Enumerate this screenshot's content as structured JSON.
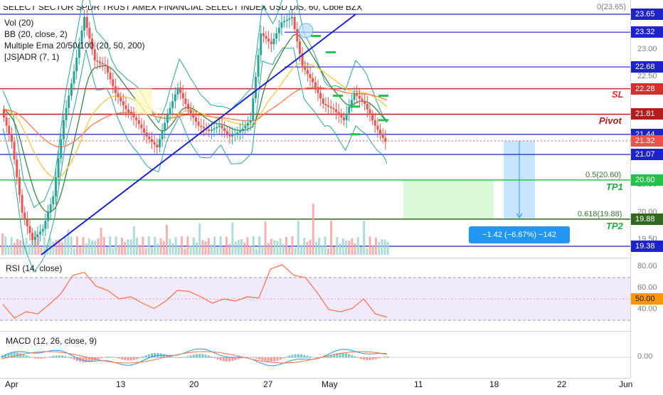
{
  "header": {
    "title": "SELECT SECTOR SPDR TRUST AMEX FINANCIAL SELECT INDEX USD DIS, 60, Cboe BZX",
    "indicators": [
      "Vol (20)",
      "BB (20, close, 2)",
      "Multiple Ema 20/50/100 (20, 50, 200)",
      "[JS]ADR (7, 1)"
    ],
    "zero_label": "0(23.65)"
  },
  "rsi_label": "RSI (14, close)",
  "macd_label": "MACD (12, 26, close, 9)",
  "annotations": {
    "sl": "SL",
    "pivot": "Pivot",
    "tp1": "TP1",
    "tp2": "TP2",
    "fib_05": "0.5(20.60)",
    "fib_0618": "0.618(19.88)",
    "measure": "−1.42 (−6.67%) −142"
  },
  "colors": {
    "blue": "#1e22c9",
    "red": "#d32f2f",
    "darkred": "#b71c1c",
    "green": "#24c24a",
    "darkgreen": "#33691e",
    "teal": "#26a69a"
  },
  "chart_data": [
    {
      "type": "candlestick",
      "title": "SELECT SECTOR SPDR TRUST AMEX FINANCIAL SELECT INDEX USD DIS, 60, Cboe BZX",
      "x_ticks": [
        "Apr",
        "13",
        "20",
        "27",
        "May",
        "11",
        "18",
        "22",
        "Jun"
      ],
      "y_ticks": [
        23.0,
        22.5,
        20.5,
        20.0,
        19.5
      ],
      "price_levels": [
        {
          "value": 23.65,
          "label": "23.65",
          "color": "#1e22c9"
        },
        {
          "value": 23.32,
          "label": "23.32",
          "color": "#1e22c9"
        },
        {
          "value": 22.68,
          "label": "22.68",
          "color": "#1e22c9"
        },
        {
          "value": 22.28,
          "label": "22.28",
          "color": "#1e22c9"
        },
        {
          "value": 22.28,
          "label": "22.28",
          "color": "#d32f2f"
        },
        {
          "value": 21.81,
          "label": "21.81",
          "color": "#b71c1c"
        },
        {
          "value": 21.44,
          "label": "21.44",
          "color": "#1e22c9"
        },
        {
          "value": 21.32,
          "label": "21.32",
          "color": "#ef5350"
        },
        {
          "value": 21.07,
          "label": "21.07",
          "color": "#1e22c9"
        },
        {
          "value": 20.6,
          "label": "20.60",
          "color": "#24c24a"
        },
        {
          "value": 19.88,
          "label": "19.88",
          "color": "#33691e"
        },
        {
          "value": 19.38,
          "label": "19.38",
          "color": "#1e22c9"
        }
      ],
      "fib_levels": [
        {
          "ratio": 0.5,
          "value": 20.6
        },
        {
          "ratio": 0.618,
          "value": 19.88
        }
      ],
      "approx_close_path": [
        21.9,
        21.3,
        20.0,
        19.5,
        19.7,
        20.3,
        21.7,
        22.6,
        23.6,
        22.8,
        22.7,
        22.2,
        21.9,
        21.7,
        21.4,
        21.2,
        21.8,
        22.3,
        21.9,
        21.6,
        21.5,
        21.6,
        21.4,
        21.5,
        21.7,
        23.3,
        23.1,
        23.5,
        23.6,
        22.7,
        22.4,
        22.0,
        21.9,
        21.7,
        22.2,
        22.0,
        21.6,
        21.3
      ]
    },
    {
      "type": "line",
      "title": "RSI (14, close)",
      "y_ticks": [
        80.0,
        60.0,
        50.0,
        40.0
      ],
      "highlight_value": 50.0,
      "approx_values": [
        45,
        32,
        38,
        36,
        45,
        55,
        72,
        75,
        62,
        58,
        50,
        52,
        46,
        41,
        48,
        58,
        57,
        52,
        46,
        50,
        48,
        52,
        51,
        78,
        82,
        72,
        70,
        56,
        40,
        38,
        41,
        50,
        36,
        33
      ]
    },
    {
      "type": "histogram",
      "title": "MACD (12, 26, close, 9)",
      "y_ticks": [
        0.0
      ]
    }
  ]
}
